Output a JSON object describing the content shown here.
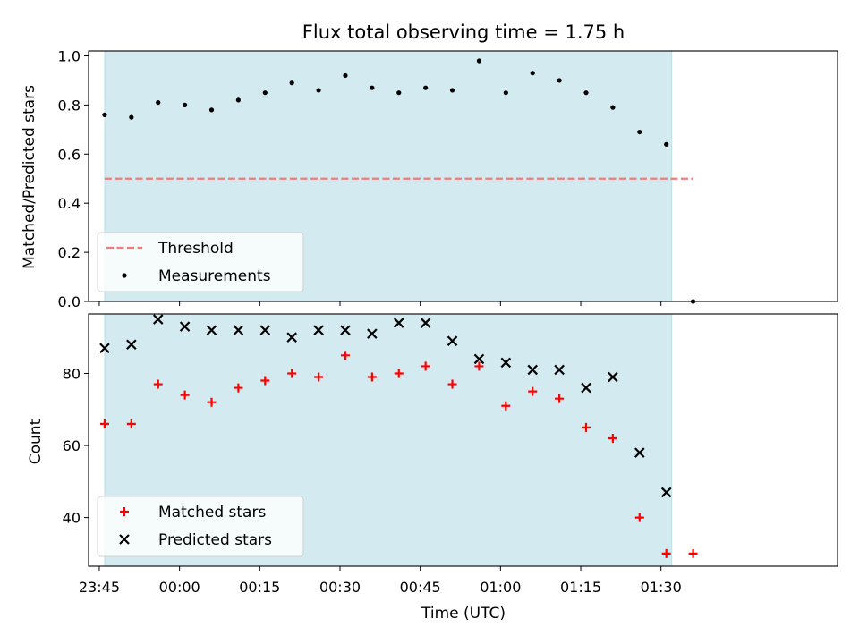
{
  "chart_data": [
    {
      "type": "scatter",
      "title": "Flux total observing time = 1.75 h",
      "xlabel": "",
      "ylabel": "Matched/Predicted stars",
      "ylim": [
        0.0,
        1.02
      ],
      "yticks": [
        "0.0",
        "0.2",
        "0.4",
        "0.6",
        "0.8",
        "1.0"
      ],
      "shaded_interval": [
        "23:46",
        "01:32"
      ],
      "shade_color": "#d3eaf0",
      "legend_position": "lower-left",
      "series": [
        {
          "name": "Threshold",
          "kind": "dashed-line",
          "color": "#f07c7c",
          "x": [
            "23:46",
            "01:36"
          ],
          "y": [
            0.5,
            0.5
          ]
        },
        {
          "name": "Measurements",
          "kind": "dot",
          "color": "#000000",
          "x": [
            "23:46",
            "23:51",
            "23:56",
            "00:01",
            "00:06",
            "00:11",
            "00:16",
            "00:21",
            "00:26",
            "00:31",
            "00:36",
            "00:41",
            "00:46",
            "00:51",
            "00:56",
            "01:01",
            "01:06",
            "01:11",
            "01:16",
            "01:21",
            "01:26",
            "01:31",
            "01:36"
          ],
          "y": [
            0.76,
            0.75,
            0.81,
            0.8,
            0.78,
            0.82,
            0.85,
            0.89,
            0.86,
            0.92,
            0.87,
            0.85,
            0.87,
            0.86,
            0.98,
            0.85,
            0.93,
            0.9,
            0.85,
            0.79,
            0.69,
            0.64,
            0.0
          ]
        }
      ]
    },
    {
      "type": "scatter",
      "title": "",
      "xlabel": "Time (UTC)",
      "ylabel": "Count",
      "ylim": [
        26.5,
        96.5
      ],
      "yticks": [
        "40",
        "60",
        "80"
      ],
      "xticks": [
        "23:45",
        "00:00",
        "00:15",
        "00:30",
        "00:45",
        "01:00",
        "01:15",
        "01:30"
      ],
      "shaded_interval": [
        "23:46",
        "01:32"
      ],
      "shade_color": "#d3eaf0",
      "legend_position": "lower-left",
      "series": [
        {
          "name": "Matched stars",
          "kind": "plus",
          "color": "#ff0000",
          "x": [
            "23:46",
            "23:51",
            "23:56",
            "00:01",
            "00:06",
            "00:11",
            "00:16",
            "00:21",
            "00:26",
            "00:31",
            "00:36",
            "00:41",
            "00:46",
            "00:51",
            "00:56",
            "01:01",
            "01:06",
            "01:11",
            "01:16",
            "01:21",
            "01:26",
            "01:31",
            "01:36"
          ],
          "y": [
            66,
            66,
            77,
            74,
            72,
            76,
            78,
            80,
            79,
            85,
            79,
            80,
            82,
            77,
            82,
            71,
            75,
            73,
            65,
            62,
            40,
            30,
            30
          ]
        },
        {
          "name": "Predicted stars",
          "kind": "x",
          "color": "#000000",
          "x": [
            "23:46",
            "23:51",
            "23:56",
            "00:01",
            "00:06",
            "00:11",
            "00:16",
            "00:21",
            "00:26",
            "00:31",
            "00:36",
            "00:41",
            "00:46",
            "00:51",
            "00:56",
            "01:01",
            "01:06",
            "01:11",
            "01:16",
            "01:21",
            "01:26",
            "01:31"
          ],
          "y": [
            87,
            88,
            95,
            93,
            92,
            92,
            92,
            90,
            92,
            92,
            91,
            94,
            94,
            89,
            84,
            83,
            81,
            81,
            76,
            79,
            58,
            47
          ]
        }
      ]
    }
  ]
}
